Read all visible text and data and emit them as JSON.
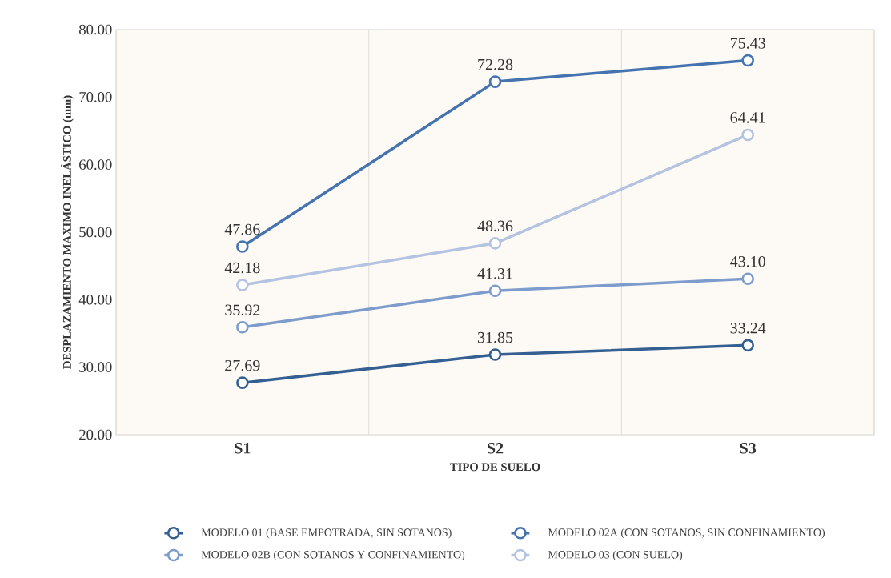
{
  "chart_data": {
    "type": "line",
    "xlabel": "TIPO DE SUELO",
    "ylabel": "DESPLAZAMIENTO MAXIMO INELÁSTICO (mm)",
    "categories": [
      "S1",
      "S2",
      "S3"
    ],
    "series": [
      {
        "name": "MODELO 01 (BASE EMPOTRADA, SIN SOTANOS)",
        "color": "#335f91",
        "values": [
          27.69,
          31.85,
          33.24
        ],
        "value_labels": [
          "27.69",
          "31.85",
          "33.24"
        ]
      },
      {
        "name": "MODELO 02A (CON SOTANOS, SIN CONFINAMIENTO)",
        "color": "#4473b0",
        "values": [
          47.86,
          72.28,
          75.43
        ],
        "value_labels": [
          "47.86",
          "72.28",
          "75.43"
        ]
      },
      {
        "name": "MODELO 02B (CON SOTANOS Y CONFINAMIENTO)",
        "color": "#7d9ccc",
        "values": [
          35.92,
          41.31,
          43.1
        ],
        "value_labels": [
          "35.92",
          "41.31",
          "43.10"
        ]
      },
      {
        "name": "MODELO 03 (CON SUELO)",
        "color": "#b4c3e0",
        "values": [
          42.18,
          48.36,
          64.41
        ],
        "value_labels": [
          "42.18",
          "48.36",
          "64.41"
        ]
      }
    ],
    "ylim": [
      20,
      80
    ],
    "yticks": [
      {
        "value": 20,
        "label": "20.00"
      },
      {
        "value": 30,
        "label": "30.00"
      },
      {
        "value": 40,
        "label": "40.00"
      },
      {
        "value": 50,
        "label": "50.00"
      },
      {
        "value": 60,
        "label": "60.00"
      },
      {
        "value": 70,
        "label": "70.00"
      },
      {
        "value": 80,
        "label": "80.00"
      }
    ],
    "grid": true,
    "legend": "bottom",
    "marker": "circle",
    "line_style": "solid"
  }
}
